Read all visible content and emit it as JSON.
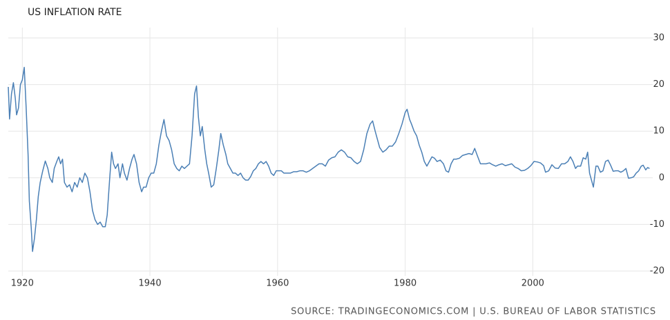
{
  "chart_data": {
    "type": "line",
    "title": "US INFLATION RATE",
    "source": "SOURCE: TRADINGECONOMICS.COM | U.S. BUREAU OF LABOR STATISTICS",
    "xlim": [
      1917.8,
      2018.8
    ],
    "xticks": [
      1920,
      1940,
      1960,
      1980,
      2000
    ],
    "ylim": [
      -20,
      30
    ],
    "yticks": [
      -20,
      -10,
      0,
      10,
      20,
      30
    ],
    "grid": true,
    "x": [
      1917.8,
      1918.0,
      1918.3,
      1918.6,
      1918.9,
      1919.1,
      1919.4,
      1919.7,
      1920.0,
      1920.3,
      1920.6,
      1920.9,
      1921.1,
      1921.4,
      1921.6,
      1921.9,
      1922.2,
      1922.5,
      1922.8,
      1923.2,
      1923.6,
      1924.0,
      1924.3,
      1924.7,
      1925.0,
      1925.4,
      1925.7,
      1926.0,
      1926.3,
      1926.6,
      1927.0,
      1927.4,
      1927.8,
      1928.2,
      1928.6,
      1929.0,
      1929.4,
      1929.8,
      1930.2,
      1930.6,
      1931.0,
      1931.4,
      1931.8,
      1932.2,
      1932.6,
      1933.0,
      1933.3,
      1933.7,
      1934.0,
      1934.3,
      1934.6,
      1935.0,
      1935.3,
      1935.7,
      1936.0,
      1936.4,
      1936.8,
      1937.2,
      1937.5,
      1937.9,
      1938.3,
      1938.7,
      1939.0,
      1939.4,
      1939.8,
      1940.2,
      1940.6,
      1941.0,
      1941.4,
      1941.8,
      1942.2,
      1942.6,
      1943.0,
      1943.4,
      1943.8,
      1944.2,
      1944.6,
      1945.0,
      1945.4,
      1945.8,
      1946.2,
      1946.6,
      1947.0,
      1947.3,
      1947.6,
      1947.9,
      1948.2,
      1948.6,
      1948.9,
      1949.2,
      1949.6,
      1950.0,
      1950.4,
      1950.8,
      1951.1,
      1951.5,
      1951.9,
      1952.2,
      1952.6,
      1953.0,
      1953.4,
      1953.8,
      1954.2,
      1954.6,
      1955.0,
      1955.4,
      1955.8,
      1956.2,
      1956.6,
      1957.0,
      1957.4,
      1957.8,
      1958.2,
      1958.6,
      1959.0,
      1959.4,
      1959.8,
      1960.2,
      1960.6,
      1961.0,
      1961.5,
      1962.0,
      1962.5,
      1963.0,
      1963.5,
      1964.0,
      1964.5,
      1965.0,
      1965.5,
      1966.0,
      1966.5,
      1967.0,
      1967.5,
      1968.0,
      1968.5,
      1969.0,
      1969.5,
      1970.0,
      1970.5,
      1971.0,
      1971.5,
      1972.0,
      1972.5,
      1973.0,
      1973.5,
      1974.0,
      1974.5,
      1974.9,
      1975.3,
      1975.7,
      1976.0,
      1976.5,
      1977.0,
      1977.5,
      1978.0,
      1978.5,
      1979.0,
      1979.5,
      1980.0,
      1980.3,
      1980.7,
      1981.0,
      1981.4,
      1981.8,
      1982.2,
      1982.6,
      1983.0,
      1983.4,
      1983.8,
      1984.2,
      1984.6,
      1985.0,
      1985.5,
      1986.0,
      1986.4,
      1986.8,
      1987.2,
      1987.6,
      1988.0,
      1988.5,
      1989.0,
      1989.5,
      1990.0,
      1990.5,
      1990.9,
      1991.3,
      1991.8,
      1992.2,
      1992.7,
      1993.2,
      1993.7,
      1994.2,
      1994.7,
      1995.2,
      1995.7,
      1996.2,
      1996.7,
      1997.2,
      1997.7,
      1998.2,
      1998.7,
      1999.2,
      1999.7,
      2000.2,
      2000.7,
      2001.2,
      2001.7,
      2002.0,
      2002.5,
      2003.0,
      2003.5,
      2004.0,
      2004.5,
      2005.0,
      2005.5,
      2005.9,
      2006.3,
      2006.7,
      2007.0,
      2007.5,
      2007.9,
      2008.3,
      2008.6,
      2008.9,
      2009.2,
      2009.5,
      2009.9,
      2010.2,
      2010.6,
      2011.0,
      2011.4,
      2011.8,
      2012.2,
      2012.6,
      2013.0,
      2013.4,
      2013.8,
      2014.2,
      2014.6,
      2015.0,
      2015.4,
      2015.8,
      2016.2,
      2016.6,
      2017.0,
      2017.3,
      2017.7,
      2018.0,
      2018.3
    ],
    "series": [
      {
        "color": "#4a7fb5",
        "values": [
          19.5,
          12.6,
          18,
          20.4,
          17,
          13.5,
          15,
          20,
          21,
          23.7,
          15,
          5,
          -5,
          -10.8,
          -15.8,
          -13,
          -9,
          -4,
          -1,
          1.5,
          3.6,
          2,
          0,
          -1,
          2,
          3.5,
          4.5,
          3,
          4,
          -1,
          -2,
          -1.5,
          -3,
          -1,
          -2,
          0,
          -1,
          1,
          0,
          -3,
          -7,
          -9,
          -10,
          -9.5,
          -10.5,
          -10.5,
          -8,
          0,
          5.5,
          3,
          2,
          3,
          0,
          3,
          1,
          -0.5,
          2,
          4,
          5,
          3,
          -1,
          -3,
          -2,
          -2,
          0,
          1,
          1,
          3,
          7,
          10,
          12.5,
          9,
          8,
          6,
          3,
          2,
          1.5,
          2.5,
          2,
          2.5,
          3,
          9,
          18,
          19.7,
          13,
          9,
          11,
          6,
          3,
          1,
          -2,
          -1.5,
          2,
          6,
          9.5,
          7,
          5,
          3,
          2,
          1,
          1,
          0.5,
          1,
          0,
          -0.5,
          -0.5,
          0.3,
          1.5,
          2,
          3,
          3.5,
          3,
          3.5,
          2.5,
          1,
          0.5,
          1.5,
          1.5,
          1.5,
          1,
          1,
          1,
          1.3,
          1.3,
          1.5,
          1.5,
          1.2,
          1.5,
          2,
          2.5,
          3,
          3,
          2.5,
          3.8,
          4.3,
          4.5,
          5.5,
          6,
          5.5,
          4.5,
          4.3,
          3.5,
          3,
          3.5,
          6,
          9.5,
          11.5,
          12.2,
          10,
          8,
          6.5,
          5.5,
          6,
          6.8,
          6.8,
          7.7,
          9.5,
          11.5,
          14,
          14.7,
          12.5,
          11.5,
          10,
          9,
          7,
          5.5,
          3.5,
          2.5,
          3.5,
          4.5,
          4.2,
          3.5,
          3.8,
          3,
          1.5,
          1.2,
          3,
          4,
          4,
          4.2,
          4.8,
          5,
          5.2,
          5,
          6.3,
          4.8,
          3,
          3,
          3,
          3.2,
          2.8,
          2.5,
          2.8,
          3,
          2.6,
          2.8,
          3,
          2.3,
          2,
          1.5,
          1.6,
          2,
          2.6,
          3.5,
          3.4,
          3.2,
          2.6,
          1.2,
          1.5,
          2.8,
          2.1,
          2,
          3,
          3,
          3.5,
          4.5,
          3.5,
          2,
          2.5,
          2.5,
          4.3,
          4,
          5.5,
          1,
          -0.5,
          -2,
          2.5,
          2.5,
          1.2,
          1.5,
          3.5,
          3.8,
          2.7,
          1.4,
          1.5,
          1.5,
          1.2,
          1.5,
          2,
          -0.1,
          0,
          0.2,
          1,
          1.5,
          2.5,
          2.7,
          1.7,
          2.2,
          2
        ]
      }
    ]
  }
}
